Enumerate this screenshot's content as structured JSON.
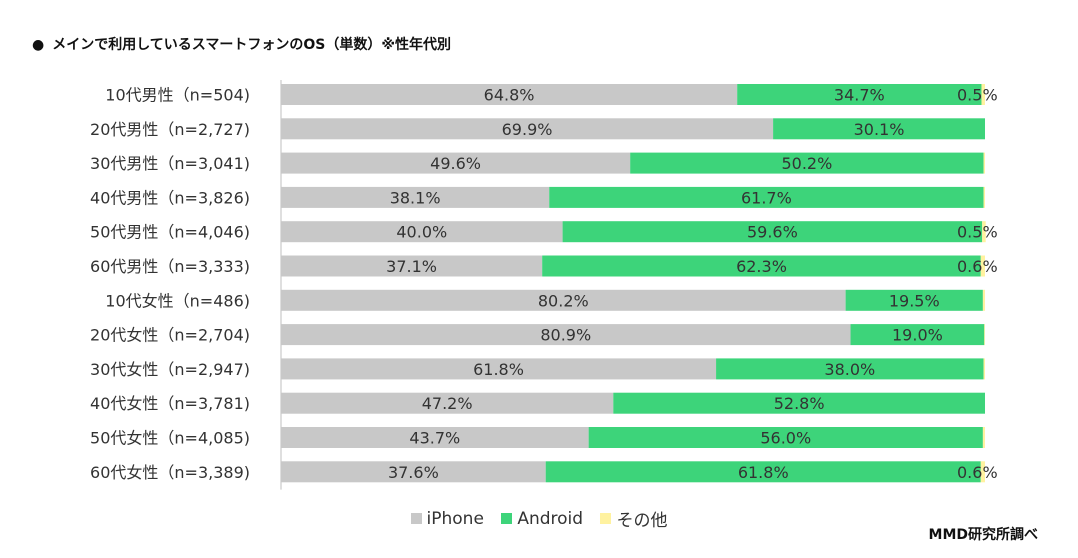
{
  "title": "メインで利用しているスマートフォンのOS（単数）※性年代別",
  "bullet": "●",
  "source": "MMD研究所調べ",
  "chart_data": {
    "type": "bar",
    "orientation": "horizontal",
    "stacked": true,
    "percent_stacked": true,
    "title": "メインで利用しているスマートフォンのOS（単数）※性年代別",
    "xlim": [
      0,
      100
    ],
    "grid": false,
    "legend_position": "bottom",
    "categories": [
      "10代男性（n=504)",
      "20代男性（n=2,727)",
      "30代男性（n=3,041)",
      "40代男性（n=3,826)",
      "50代男性（n=4,046)",
      "60代男性（n=3,333)",
      "10代女性（n=486)",
      "20代女性（n=2,704)",
      "30代女性（n=2,947)",
      "40代女性（n=3,781)",
      "50代女性（n=4,085)",
      "60代女性（n=3,389)"
    ],
    "series": [
      {
        "name": "iPhone",
        "color": "#c8c8c8",
        "values": [
          64.8,
          69.9,
          49.6,
          38.1,
          40.0,
          37.1,
          80.2,
          80.9,
          61.8,
          47.2,
          43.7,
          37.6
        ],
        "labels": [
          "64.8%",
          "69.9%",
          "49.6%",
          "38.1%",
          "40.0%",
          "37.1%",
          "80.2%",
          "80.9%",
          "61.8%",
          "47.2%",
          "43.7%",
          "37.6%"
        ]
      },
      {
        "name": "Android",
        "color": "#3dd47a",
        "values": [
          34.7,
          30.1,
          50.2,
          61.7,
          59.6,
          62.3,
          19.5,
          19.0,
          38.0,
          52.8,
          56.0,
          61.8
        ],
        "labels": [
          "34.7%",
          "30.1%",
          "50.2%",
          "61.7%",
          "59.6%",
          "62.3%",
          "19.5%",
          "19.0%",
          "38.0%",
          "52.8%",
          "56.0%",
          "61.8%"
        ]
      },
      {
        "name": "その他",
        "color": "#fff2a0",
        "values": [
          0.5,
          0.0,
          0.2,
          0.2,
          0.5,
          0.6,
          0.3,
          0.1,
          0.2,
          0.0,
          0.3,
          0.6
        ],
        "labels": [
          "0.5%",
          "",
          "",
          "",
          "0.5%",
          "0.6%",
          "",
          "",
          "",
          "",
          "",
          "0.6%"
        ]
      }
    ]
  }
}
